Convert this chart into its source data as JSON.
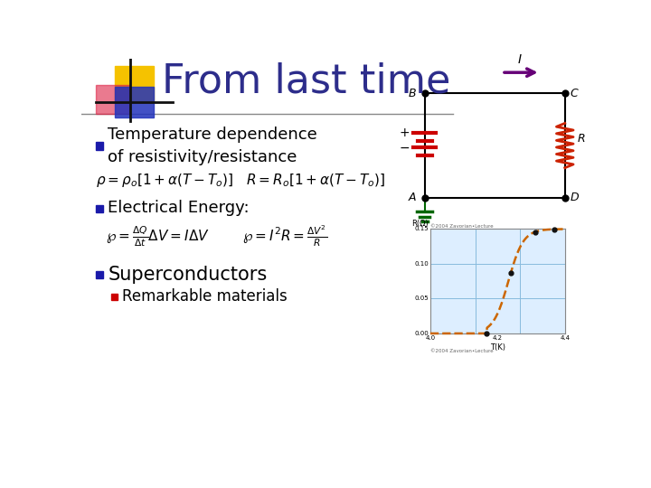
{
  "title": "From last time",
  "title_color": "#2d2d8b",
  "title_fontsize": 32,
  "background_color": "#ffffff",
  "slide_line_color": "#888888",
  "bullet1_text": "Temperature dependence\nof resistivity/resistance",
  "bullet2_text": "Electrical Energy:",
  "bullet3_text": "Superconductors",
  "subbullet1": "Remarkable materials",
  "bullet_color_blue": "#1a1aaa",
  "bullet_color_red": "#cc0000",
  "text_color": "#000000",
  "formula_color": "#000000",
  "logo_yellow": "#f5c200",
  "logo_red": "#dd2244",
  "logo_blue": "#2233bb",
  "circuit_color": "#000000",
  "battery_color": "#cc0000",
  "arrow_color": "#660077",
  "resistor_color": "#cc2200",
  "ground_color": "#006600",
  "graph_curve_color": "#cc6600",
  "graph_grid_color": "#88bbdd"
}
